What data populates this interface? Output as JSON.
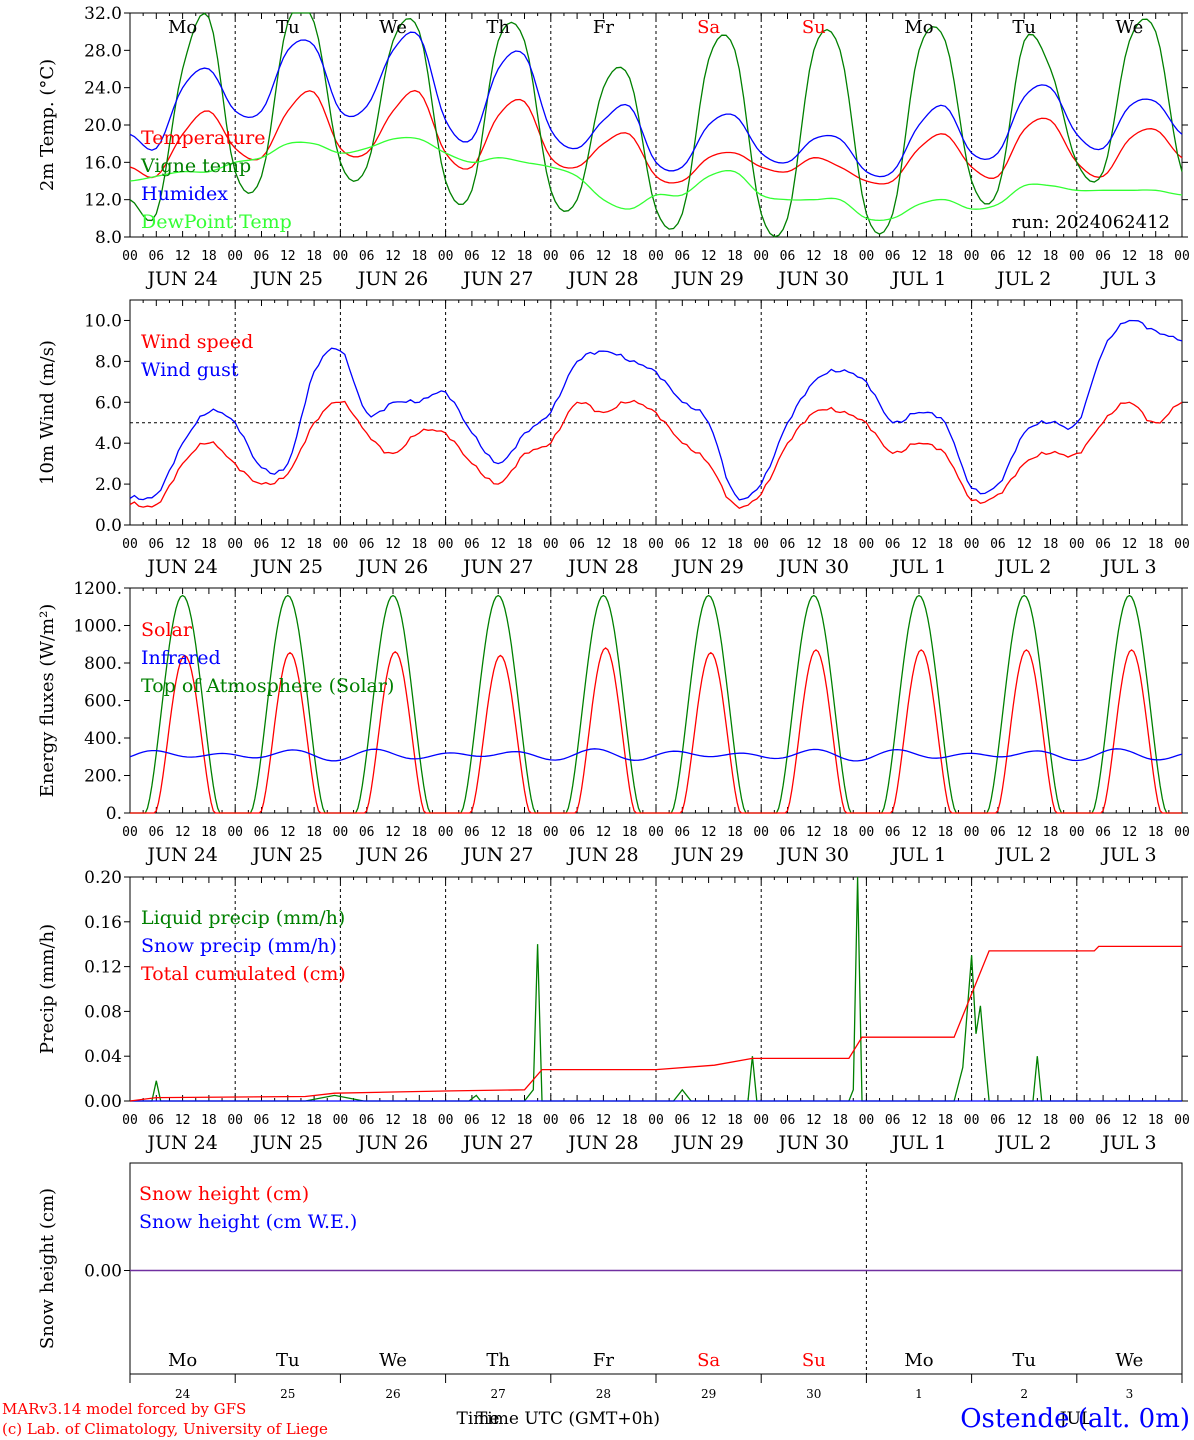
{
  "chart_data": [
    {
      "type": "line",
      "ylabel": "2m Temp. (°C)",
      "ylim": [
        8,
        32
      ],
      "yticks": [
        "8.0",
        "12.0",
        "16.0",
        "20.0",
        "24.0",
        "28.0",
        "32.0"
      ],
      "run_label": "run: 2024062412",
      "weekday_labels": [
        "Mo",
        "Tu",
        "We",
        "Th",
        "Fr",
        "Sa",
        "Su",
        "Mo",
        "Tu",
        "We"
      ],
      "series": [
        {
          "name": "Temperature",
          "color": "#ff0000",
          "step_hours": 6,
          "values": [
            15.5,
            14.5,
            19,
            21.5,
            17.5,
            16.5,
            21.5,
            23.5,
            17.5,
            17,
            21.5,
            23.5,
            17,
            15.5,
            21,
            22.5,
            16.5,
            15.5,
            18,
            19,
            14.5,
            14,
            16.5,
            17,
            15.5,
            15,
            16.5,
            15.5,
            14,
            14,
            17.5,
            19,
            15.5,
            14.5,
            19.5,
            20.5,
            16,
            14.5,
            18.5,
            19.5,
            16.5
          ]
        },
        {
          "name": "Vigne temp",
          "color": "#008000",
          "step_hours": 6,
          "values": [
            12,
            10.5,
            26,
            31.5,
            15,
            14.5,
            31,
            31,
            16,
            15.5,
            29,
            30,
            14,
            13,
            29,
            29,
            13,
            12,
            24,
            25,
            11,
            10.5,
            27,
            28,
            10.5,
            10,
            28,
            28,
            10.5,
            10.5,
            28,
            29,
            14,
            13,
            29,
            26,
            16,
            15,
            29,
            30,
            15
          ]
        },
        {
          "name": "Humidex",
          "color": "#0000ff",
          "step_hours": 6,
          "values": [
            19,
            17.5,
            24,
            26,
            21.5,
            21.5,
            28,
            28.5,
            21.5,
            22,
            28,
            29.5,
            20.5,
            18.5,
            26,
            27.5,
            19.5,
            17.5,
            20.5,
            22,
            16,
            15.5,
            20,
            21,
            17,
            16,
            18.5,
            18.5,
            15,
            15,
            20,
            22,
            17,
            17,
            23,
            24,
            19,
            17.5,
            22,
            22.5,
            19
          ]
        },
        {
          "name": "DewPoint Temp",
          "color": "#33ff33",
          "step_hours": 6,
          "values": [
            14,
            14.5,
            15,
            15,
            16,
            16.5,
            18,
            18,
            17,
            17.5,
            18.5,
            18.5,
            17,
            16,
            16.5,
            16,
            15.5,
            14.5,
            12,
            11,
            12.5,
            12.5,
            14.5,
            15,
            12.5,
            12,
            12,
            12,
            10,
            10,
            11.5,
            12,
            11,
            11.5,
            13.5,
            13.5,
            13,
            13,
            13,
            13,
            12.5
          ]
        }
      ]
    },
    {
      "type": "line",
      "ylabel": "10m Wind (m/s)",
      "ylim": [
        0,
        11
      ],
      "yticks": [
        "0.0",
        "2.0",
        "4.0",
        "6.0",
        "8.0",
        "10.0"
      ],
      "reference_line": 5,
      "series": [
        {
          "name": "Wind speed",
          "color": "#ff0000",
          "step_hours": 6,
          "values": [
            1,
            1,
            3,
            4,
            3,
            2,
            2.5,
            5,
            6,
            4.5,
            3.5,
            4.5,
            4.5,
            3,
            2,
            3.5,
            4,
            6,
            5.5,
            6,
            5.5,
            4,
            3,
            1,
            1.5,
            4,
            5.5,
            5.5,
            5,
            3.5,
            4,
            3.5,
            1.2,
            1.5,
            3,
            3.5,
            3.5,
            5,
            6,
            5,
            6
          ]
        },
        {
          "name": "Wind gust",
          "color": "#0000ff",
          "step_hours": 6,
          "values": [
            1.3,
            1.5,
            4,
            5.5,
            5,
            2.8,
            3,
            7.5,
            8.5,
            5.5,
            6,
            6,
            6.5,
            4.5,
            3,
            4.5,
            5.5,
            8,
            8.5,
            8,
            7.5,
            6,
            5,
            1.5,
            2,
            5,
            7,
            7.5,
            7,
            5,
            5.5,
            5,
            1.8,
            2,
            4.5,
            5,
            5,
            8.5,
            10,
            9.5,
            9
          ]
        }
      ]
    },
    {
      "type": "line",
      "ylabel": "Energy fluxes (W/m²)",
      "ylim": [
        0,
        1200
      ],
      "yticks": [
        "0.",
        "200.",
        "400.",
        "600.",
        "800.",
        "1000.",
        "1200."
      ],
      "series": [
        {
          "name": "Solar",
          "color": "#ff0000",
          "daily_peak": [
            840,
            855,
            860,
            840,
            880,
            855,
            870,
            870,
            870,
            870
          ]
        },
        {
          "name": "Infrared",
          "color": "#0000ff",
          "level": 330
        },
        {
          "name": "Top of Atmosphere (Solar)",
          "color": "#008000",
          "daily_peak": [
            1160,
            1160,
            1160,
            1160,
            1160,
            1160,
            1160,
            1160,
            1160,
            1160
          ]
        }
      ]
    },
    {
      "type": "line",
      "ylabel": "Precip (mm/h)",
      "ylim": [
        0,
        0.2
      ],
      "yticks": [
        "0.00",
        "0.04",
        "0.08",
        "0.12",
        "0.16",
        "0.20"
      ],
      "series": [
        {
          "name": "Liquid precip (mm/h)",
          "color": "#008000",
          "points": [
            [
              0,
              0
            ],
            [
              15,
              0
            ],
            [
              18,
              0.018
            ],
            [
              21,
              0
            ],
            [
              120,
              0
            ],
            [
              140,
              0.005
            ],
            [
              160,
              0
            ],
            [
              232,
              0
            ],
            [
              237,
              0.005
            ],
            [
              240,
              0
            ],
            [
              270,
              0
            ],
            [
              276,
              0.01
            ],
            [
              279,
              0.14
            ],
            [
              282,
              0
            ],
            [
              372,
              0
            ],
            [
              378,
              0.01
            ],
            [
              384,
              0
            ],
            [
              423,
              0
            ],
            [
              426,
              0.04
            ],
            [
              429,
              0
            ],
            [
              492,
              0
            ],
            [
              495,
              0.01
            ],
            [
              498,
              0.2
            ],
            [
              501,
              0
            ],
            [
              564,
              0
            ],
            [
              570,
              0.03
            ],
            [
              576,
              0.13
            ],
            [
              579,
              0.06
            ],
            [
              582,
              0.085
            ],
            [
              585,
              0.04
            ],
            [
              588,
              0
            ],
            [
              618,
              0
            ],
            [
              621,
              0.04
            ],
            [
              624,
              0
            ],
            [
              720,
              0
            ]
          ]
        },
        {
          "name": "Snow precip (mm/h)",
          "color": "#0000ff",
          "points": [
            [
              0,
              0
            ],
            [
              720,
              0
            ]
          ]
        },
        {
          "name": "Total cumulated (cm)",
          "color": "#ff0000",
          "points": [
            [
              0,
              0
            ],
            [
              18,
              0.003
            ],
            [
              120,
              0.004
            ],
            [
              140,
              0.007
            ],
            [
              180,
              0.008
            ],
            [
              220,
              0.009
            ],
            [
              270,
              0.01
            ],
            [
              282,
              0.028
            ],
            [
              360,
              0.028
            ],
            [
              400,
              0.032
            ],
            [
              426,
              0.038
            ],
            [
              492,
              0.038
            ],
            [
              501,
              0.057
            ],
            [
              564,
              0.057
            ],
            [
              588,
              0.134
            ],
            [
              660,
              0.134
            ],
            [
              663,
              0.138
            ],
            [
              720,
              0.138
            ]
          ]
        }
      ]
    },
    {
      "type": "line",
      "ylabel": "Snow height (cm)",
      "yticks": [
        "0.00"
      ],
      "series": [
        {
          "name": "Snow height (cm)",
          "color": "#ff0000",
          "values": [
            0,
            0
          ]
        },
        {
          "name": "Snow height (cm W.E.)",
          "color": "#0000ff",
          "values": [
            0,
            0
          ]
        }
      ]
    }
  ],
  "axis": {
    "hour_ticks": [
      "00",
      "06",
      "12",
      "18"
    ],
    "date_labels": [
      "JUN 24",
      "JUN 25",
      "JUN 26",
      "JUN 27",
      "JUN 28",
      "JUN 29",
      "JUN 30",
      "JUL  1",
      "JUL  2",
      "JUL  3"
    ],
    "bottom_weekdays": [
      "Mo",
      "Tu",
      "We",
      "Th",
      "Fr",
      "Sa",
      "Su",
      "Mo",
      "Tu",
      "We"
    ],
    "bottom_daynums": [
      "24",
      "25",
      "26",
      "27",
      "28",
      "29",
      "30",
      "1",
      "2",
      "3"
    ],
    "weekend_color": "#ff0000",
    "weekend_indices": [
      5,
      6
    ],
    "month_label": "JUL",
    "xlabel": "Time UTC (GMT+0h)",
    "x_overlap_label": "Time"
  },
  "footer": {
    "credit_line1": "MARv3.14 model forced by GFS",
    "credit_line2": "(c) Lab. of Climatology, University of Liege",
    "station": "Ostende (alt. 0m)"
  }
}
